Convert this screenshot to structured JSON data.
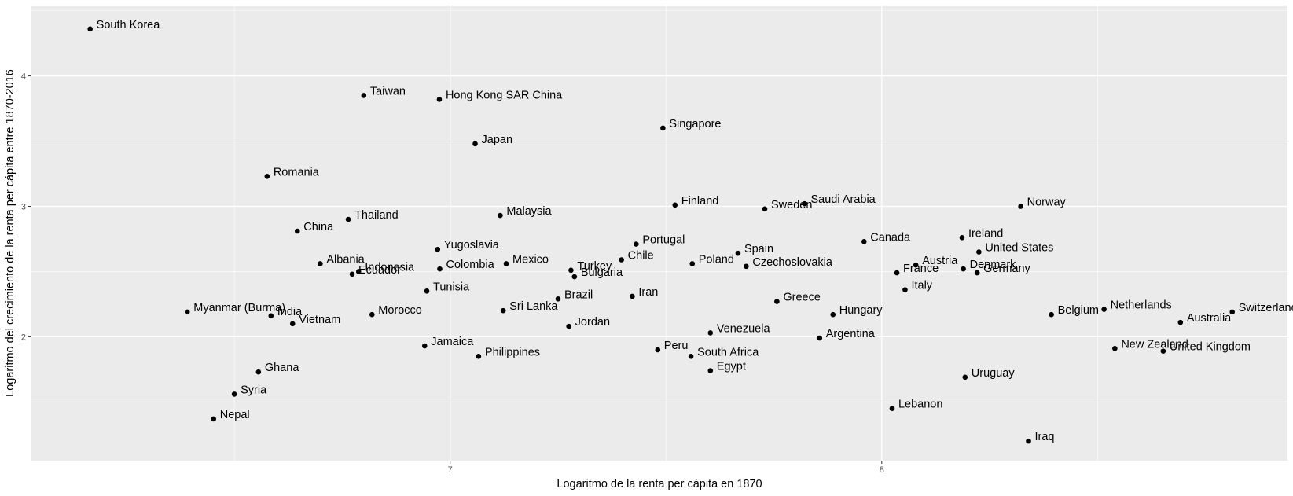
{
  "chart_data": {
    "type": "scatter",
    "title": "",
    "xlabel": "Logaritmo de la renta per cápita en 1870",
    "ylabel": "Logaritmo del crecimiento de la renta per cápita entre 1870-2016",
    "xlim": [
      6.03,
      8.94
    ],
    "ylim": [
      1.05,
      4.54
    ],
    "x_ticks": [
      7,
      8
    ],
    "y_ticks": [
      2,
      3,
      4
    ],
    "grid": true,
    "background": "#ebebeb",
    "gridline_color": "#ffffff",
    "point_color": "#000000",
    "points": [
      {
        "label": "South Korea",
        "x": 6.166,
        "y": 4.36
      },
      {
        "label": "Taiwan",
        "x": 6.8,
        "y": 3.85
      },
      {
        "label": "Hong Kong SAR China",
        "x": 6.975,
        "y": 3.82
      },
      {
        "label": "Singapore",
        "x": 7.493,
        "y": 3.6
      },
      {
        "label": "Japan",
        "x": 7.058,
        "y": 3.48
      },
      {
        "label": "Romania",
        "x": 6.576,
        "y": 3.23
      },
      {
        "label": "Finland",
        "x": 7.521,
        "y": 3.01
      },
      {
        "label": "Saudi Arabia",
        "x": 7.821,
        "y": 3.02
      },
      {
        "label": "Sweden",
        "x": 7.729,
        "y": 2.98
      },
      {
        "label": "Norway",
        "x": 8.322,
        "y": 3.0
      },
      {
        "label": "Malaysia",
        "x": 7.116,
        "y": 2.93
      },
      {
        "label": "Thailand",
        "x": 6.764,
        "y": 2.9
      },
      {
        "label": "China",
        "x": 6.646,
        "y": 2.81
      },
      {
        "label": "Ireland",
        "x": 8.186,
        "y": 2.76
      },
      {
        "label": "Canada",
        "x": 7.959,
        "y": 2.73
      },
      {
        "label": "Portugal",
        "x": 7.431,
        "y": 2.71
      },
      {
        "label": "Yugoslavia",
        "x": 6.971,
        "y": 2.67
      },
      {
        "label": "United States",
        "x": 8.225,
        "y": 2.65
      },
      {
        "label": "Spain",
        "x": 7.667,
        "y": 2.64
      },
      {
        "label": "Chile",
        "x": 7.397,
        "y": 2.59
      },
      {
        "label": "Albania",
        "x": 6.699,
        "y": 2.56
      },
      {
        "label": "Mexico",
        "x": 7.13,
        "y": 2.56
      },
      {
        "label": "Poland",
        "x": 7.561,
        "y": 2.56
      },
      {
        "label": "Austria",
        "x": 8.079,
        "y": 2.55
      },
      {
        "label": "Czechoslovakia",
        "x": 7.686,
        "y": 2.54
      },
      {
        "label": "Denmark",
        "x": 8.189,
        "y": 2.52
      },
      {
        "label": "Colombia",
        "x": 6.976,
        "y": 2.52
      },
      {
        "label": "Turkey",
        "x": 7.28,
        "y": 2.51
      },
      {
        "label": "Indonesia",
        "x": 6.788,
        "y": 2.5
      },
      {
        "label": "France",
        "x": 8.035,
        "y": 2.49
      },
      {
        "label": "Germany",
        "x": 8.221,
        "y": 2.49
      },
      {
        "label": "Ecuador",
        "x": 6.773,
        "y": 2.48
      },
      {
        "label": "Bulgaria",
        "x": 7.288,
        "y": 2.46
      },
      {
        "label": "Italy",
        "x": 8.054,
        "y": 2.36
      },
      {
        "label": "Tunisia",
        "x": 6.946,
        "y": 2.35
      },
      {
        "label": "Iran",
        "x": 7.422,
        "y": 2.31
      },
      {
        "label": "Brazil",
        "x": 7.25,
        "y": 2.29
      },
      {
        "label": "Greece",
        "x": 7.757,
        "y": 2.27
      },
      {
        "label": "Sri Lanka",
        "x": 7.123,
        "y": 2.2
      },
      {
        "label": "Netherlands",
        "x": 8.515,
        "y": 2.21
      },
      {
        "label": "Myanmar (Burma)",
        "x": 6.391,
        "y": 2.19
      },
      {
        "label": "Switzerland",
        "x": 8.812,
        "y": 2.19
      },
      {
        "label": "Hungary",
        "x": 7.887,
        "y": 2.17
      },
      {
        "label": "Morocco",
        "x": 6.819,
        "y": 2.17
      },
      {
        "label": "Belgium",
        "x": 8.393,
        "y": 2.17
      },
      {
        "label": "India",
        "x": 6.585,
        "y": 2.16
      },
      {
        "label": "Australia",
        "x": 8.692,
        "y": 2.11
      },
      {
        "label": "Vietnam",
        "x": 6.635,
        "y": 2.1
      },
      {
        "label": "Jordan",
        "x": 7.275,
        "y": 2.08
      },
      {
        "label": "Venezuela",
        "x": 7.603,
        "y": 2.03
      },
      {
        "label": "Argentina",
        "x": 7.856,
        "y": 1.99
      },
      {
        "label": "Jamaica",
        "x": 6.941,
        "y": 1.93
      },
      {
        "label": "New Zealand",
        "x": 8.54,
        "y": 1.91
      },
      {
        "label": "Peru",
        "x": 7.481,
        "y": 1.9
      },
      {
        "label": "United Kingdom",
        "x": 8.652,
        "y": 1.89
      },
      {
        "label": "South Africa",
        "x": 7.558,
        "y": 1.85
      },
      {
        "label": "Philippines",
        "x": 7.066,
        "y": 1.85
      },
      {
        "label": "Egypt",
        "x": 7.603,
        "y": 1.74
      },
      {
        "label": "Ghana",
        "x": 6.556,
        "y": 1.73
      },
      {
        "label": "Uruguay",
        "x": 8.193,
        "y": 1.69
      },
      {
        "label": "Syria",
        "x": 6.5,
        "y": 1.56
      },
      {
        "label": "Lebanon",
        "x": 8.024,
        "y": 1.45
      },
      {
        "label": "Nepal",
        "x": 6.452,
        "y": 1.37
      },
      {
        "label": "Iraq",
        "x": 8.34,
        "y": 1.2
      }
    ]
  }
}
